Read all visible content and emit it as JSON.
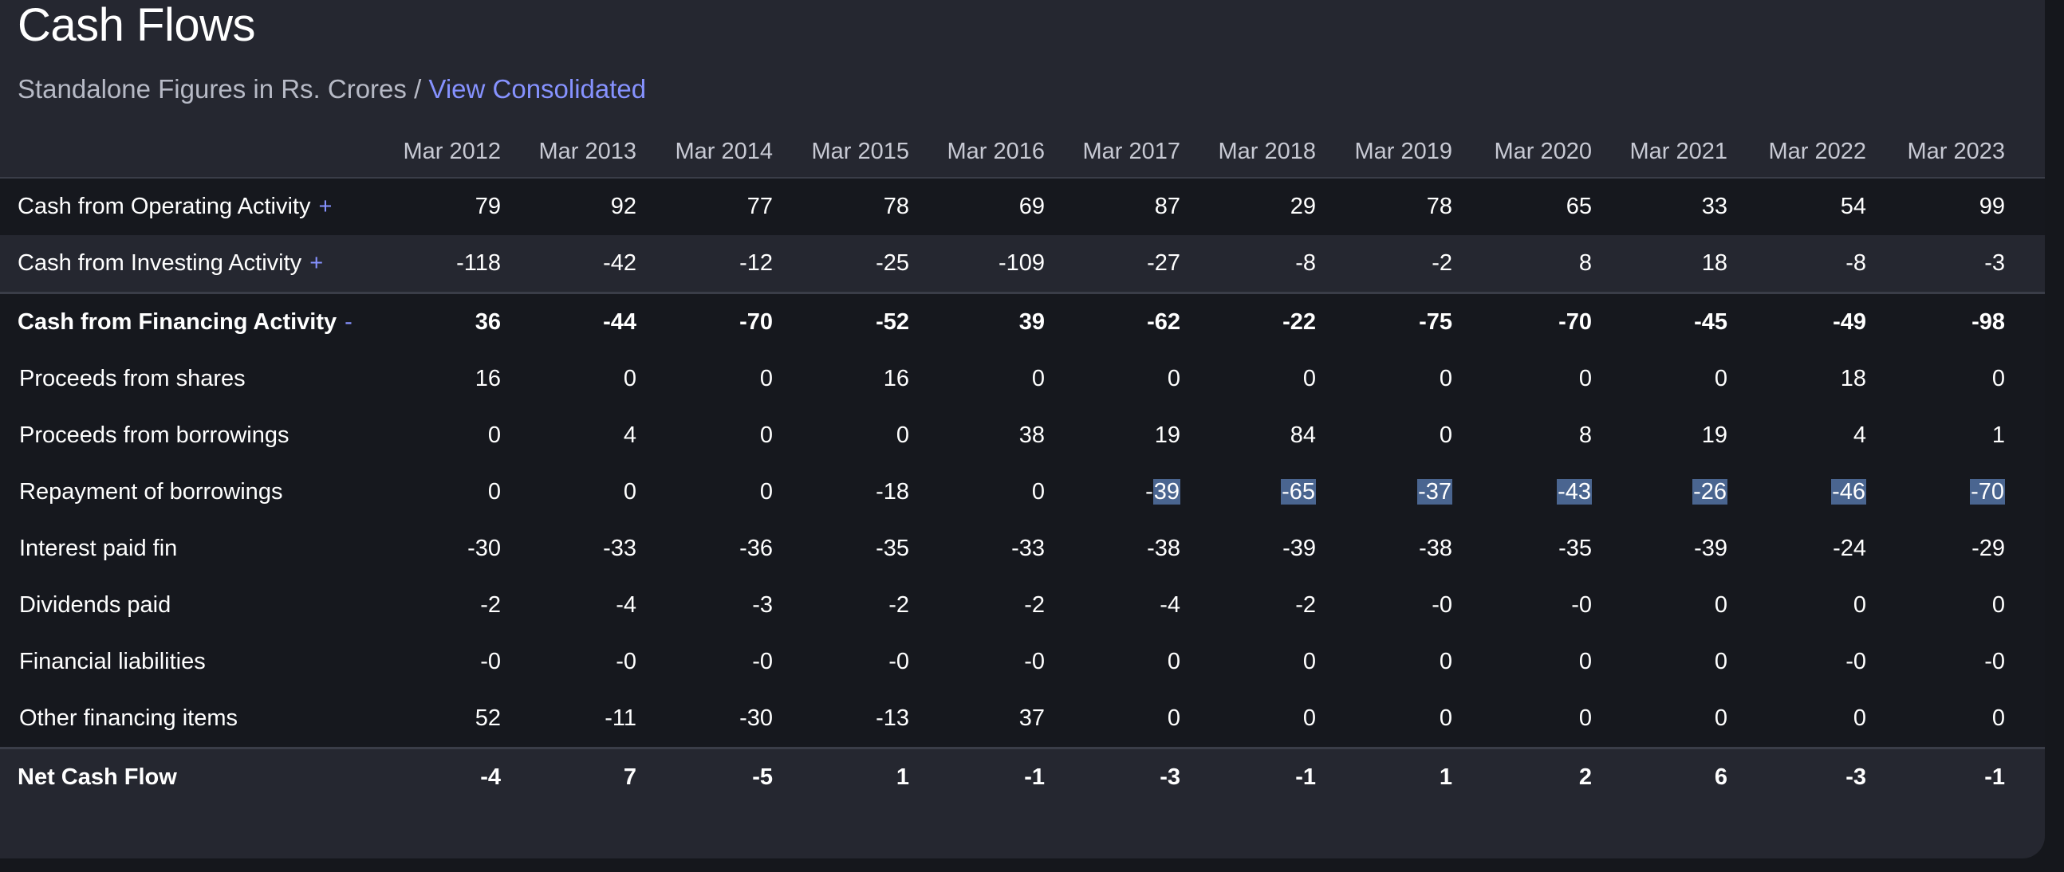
{
  "title": "Cash Flows",
  "subtitle": {
    "prefix": "Standalone Figures in Rs. Crores / ",
    "link": "View Consolidated"
  },
  "columns": [
    "Mar 2012",
    "Mar 2013",
    "Mar 2014",
    "Mar 2015",
    "Mar 2016",
    "Mar 2017",
    "Mar 2018",
    "Mar 2019",
    "Mar 2020",
    "Mar 2021",
    "Mar 2022",
    "Mar 2023"
  ],
  "rows": [
    {
      "label": "Cash from Operating Activity",
      "toggle": "+",
      "values": [
        "79",
        "92",
        "77",
        "78",
        "69",
        "87",
        "29",
        "78",
        "65",
        "33",
        "54",
        "99"
      ]
    },
    {
      "label": "Cash from Investing Activity",
      "toggle": "+",
      "values": [
        "-118",
        "-42",
        "-12",
        "-25",
        "-109",
        "-27",
        "-8",
        "-2",
        "8",
        "18",
        "-8",
        "-3"
      ]
    },
    {
      "label": "Cash from Financing Activity",
      "toggle": "-",
      "values": [
        "36",
        "-44",
        "-70",
        "-52",
        "39",
        "-62",
        "-22",
        "-75",
        "-70",
        "-45",
        "-49",
        "-98"
      ]
    },
    {
      "label": "Proceeds from shares",
      "values": [
        "16",
        "0",
        "0",
        "16",
        "0",
        "0",
        "0",
        "0",
        "0",
        "0",
        "18",
        "0"
      ]
    },
    {
      "label": "Proceeds from borrowings",
      "values": [
        "0",
        "4",
        "0",
        "0",
        "38",
        "19",
        "84",
        "0",
        "8",
        "19",
        "4",
        "1"
      ]
    },
    {
      "label": "Repayment of borrowings",
      "values": [
        "0",
        "0",
        "0",
        "-18",
        "0",
        "-39",
        "-65",
        "-37",
        "-43",
        "-26",
        "-46",
        "-70"
      ]
    },
    {
      "label": "Interest paid fin",
      "values": [
        "-30",
        "-33",
        "-36",
        "-35",
        "-33",
        "-38",
        "-39",
        "-38",
        "-35",
        "-39",
        "-24",
        "-29"
      ]
    },
    {
      "label": "Dividends paid",
      "values": [
        "-2",
        "-4",
        "-3",
        "-2",
        "-2",
        "-4",
        "-2",
        "-0",
        "-0",
        "0",
        "0",
        "0"
      ]
    },
    {
      "label": "Financial liabilities",
      "values": [
        "-0",
        "-0",
        "-0",
        "-0",
        "-0",
        "0",
        "0",
        "0",
        "0",
        "0",
        "-0",
        "-0"
      ]
    },
    {
      "label": "Other financing items",
      "values": [
        "52",
        "-11",
        "-30",
        "-13",
        "37",
        "0",
        "0",
        "0",
        "0",
        "0",
        "0",
        "0"
      ]
    },
    {
      "label": "Net Cash Flow",
      "values": [
        "-4",
        "7",
        "-5",
        "1",
        "-1",
        "-3",
        "-1",
        "1",
        "2",
        "6",
        "-3",
        "-1"
      ]
    }
  ]
}
